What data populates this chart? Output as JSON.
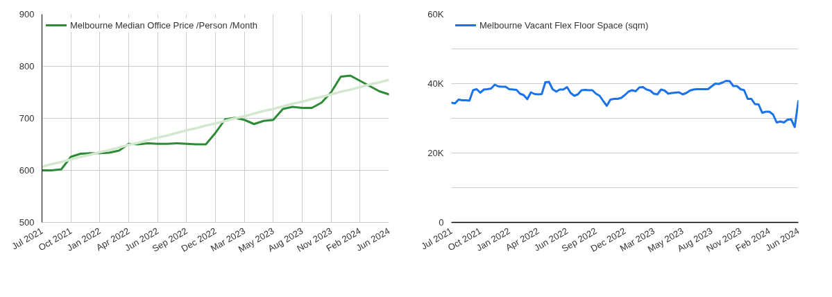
{
  "chart_data": [
    {
      "type": "line",
      "categories": [
        "Jul 2021",
        null,
        null,
        "Oct 2021",
        null,
        null,
        "Jan 2022",
        null,
        null,
        "Apr 2022",
        null,
        null,
        "Jun 2022",
        null,
        null,
        "Sep 2022",
        null,
        null,
        "Dec 2022",
        null,
        null,
        "Mar 2023",
        null,
        null,
        "May 2023",
        null,
        null,
        "Aug 2023",
        null,
        null,
        "Nov 2023",
        null,
        null,
        "Feb 2024",
        null,
        null,
        "Jun 2024"
      ],
      "series": [
        {
          "name": "Melbourne Median Office Price /Person /Month",
          "color": "#2e8b35",
          "values": [
            600,
            600,
            602,
            626,
            632,
            633,
            633,
            634,
            638,
            651,
            650,
            652,
            651,
            651,
            652,
            651,
            650,
            650,
            672,
            698,
            701,
            697,
            689,
            695,
            697,
            718,
            722,
            720,
            720,
            730,
            750,
            780,
            782,
            772,
            762,
            752,
            746
          ]
        },
        {
          "color": "#d4e8d0",
          "values": [
            607,
            612,
            616,
            621,
            626,
            630,
            635,
            639,
            644,
            649,
            653,
            658,
            663,
            667,
            672,
            677,
            681,
            686,
            690,
            695,
            700,
            704,
            709,
            714,
            718,
            723,
            728,
            732,
            737,
            741,
            746,
            751,
            755,
            760,
            765,
            769,
            774
          ]
        }
      ],
      "ylim": [
        500,
        900
      ],
      "yticks": [
        500,
        600,
        700,
        800,
        900
      ],
      "grid": true,
      "legend": "top left"
    },
    {
      "type": "line",
      "categories": [
        "Jul 2021",
        null,
        null,
        null,
        null,
        null,
        null,
        null,
        "Oct 2021",
        null,
        null,
        null,
        null,
        null,
        null,
        null,
        "Jan 2022",
        null,
        null,
        null,
        null,
        null,
        null,
        null,
        "Apr 2022",
        null,
        null,
        null,
        null,
        null,
        null,
        null,
        "Jun 2022",
        null,
        null,
        null,
        null,
        null,
        null,
        null,
        "Sep 2022",
        null,
        null,
        null,
        null,
        null,
        null,
        null,
        "Dec 2022",
        null,
        null,
        null,
        null,
        null,
        null,
        null,
        "Mar 2023",
        null,
        null,
        null,
        null,
        null,
        null,
        null,
        "May 2023",
        null,
        null,
        null,
        null,
        null,
        null,
        null,
        "Aug 2023",
        null,
        null,
        null,
        null,
        null,
        null,
        null,
        "Nov 2023",
        null,
        null,
        null,
        null,
        null,
        null,
        null,
        "Feb 2024",
        null,
        null,
        null,
        null,
        null,
        null,
        null,
        "Jun 2024"
      ],
      "series": [
        {
          "name": "Melbourne Vacant Flex Floor Space (sqm)",
          "color": "#1a73e8",
          "values": [
            34500,
            34300,
            35400,
            35200,
            35200,
            35100,
            38100,
            38400,
            37400,
            38300,
            38400,
            38600,
            39700,
            39200,
            39100,
            39100,
            38400,
            38300,
            38200,
            37100,
            36700,
            35500,
            37500,
            37000,
            36900,
            37000,
            40400,
            40500,
            38400,
            37700,
            38300,
            38300,
            39000,
            37300,
            36500,
            36900,
            38100,
            38200,
            38100,
            38100,
            37100,
            36500,
            35000,
            33600,
            35400,
            35600,
            35600,
            35900,
            36700,
            37700,
            38100,
            37800,
            38900,
            39000,
            38300,
            38000,
            37100,
            36900,
            38300,
            38000,
            37100,
            37300,
            37400,
            37500,
            36900,
            37300,
            38000,
            38300,
            38400,
            38400,
            38400,
            38400,
            39200,
            40000,
            39900,
            40300,
            40800,
            40700,
            39300,
            39300,
            38400,
            38100,
            35600,
            35600,
            34100,
            34000,
            31600,
            31900,
            31900,
            31100,
            28800,
            29100,
            28800,
            29600,
            29700,
            27500,
            35000
          ]
        }
      ],
      "ylim": [
        0,
        60000
      ],
      "yticks": [
        0,
        {
          "value": 10000,
          "label": null
        },
        {
          "value": 20000,
          "label": "20K"
        },
        {
          "value": 30000,
          "label": null
        },
        {
          "value": 40000,
          "label": "40K"
        },
        {
          "value": 50000,
          "label": null
        },
        {
          "value": 60000,
          "label": "60K"
        }
      ],
      "grid": "y",
      "legend": "top left"
    }
  ]
}
